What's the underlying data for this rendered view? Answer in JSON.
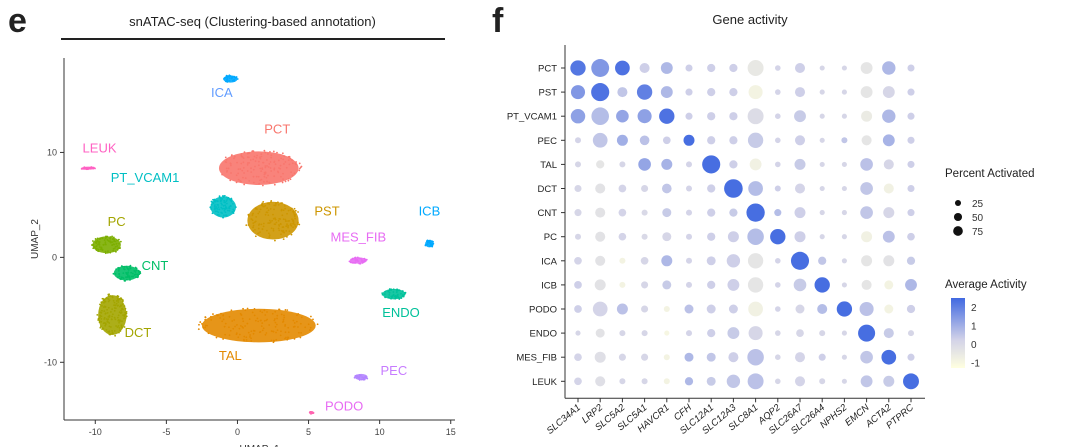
{
  "panels": {
    "e": {
      "letter": "e",
      "title": "snATAC-seq (Clustering-based annotation)"
    },
    "f": {
      "letter": "f",
      "title": "Gene activity"
    }
  },
  "chart_data": [
    {
      "type": "scatter",
      "title": "snATAC-seq (Clustering-based annotation)",
      "xlabel": "UMAP_1",
      "ylabel": "UMAP_2",
      "xlim": [
        -12.2,
        15.3
      ],
      "ylim": [
        -15.5,
        19
      ],
      "xticks": [
        -10,
        -5,
        0,
        5,
        10,
        15
      ],
      "yticks": [
        -10,
        0,
        10
      ],
      "grid": false,
      "clusters": [
        {
          "name": "ICA",
          "color": "#00a9ff",
          "label_color": "#619cff",
          "center": [
            -0.5,
            17
          ],
          "spread": [
            0.5,
            0.35
          ],
          "label_at": [
            -1.1,
            15.3
          ]
        },
        {
          "name": "PCT",
          "color": "#f8766d",
          "label_color": "#f8766d",
          "center": [
            1.5,
            8.5
          ],
          "spread": [
            2.8,
            1.6
          ],
          "label_at": [
            2.8,
            11.8
          ]
        },
        {
          "name": "PT_VCAM1",
          "color": "#00bfc4",
          "label_color": "#00bfc4",
          "center": [
            -1.0,
            4.8
          ],
          "spread": [
            0.9,
            1.0
          ],
          "label_at": [
            -6.5,
            7.2
          ]
        },
        {
          "name": "PST",
          "color": "#cd9600",
          "label_color": "#cd9600",
          "center": [
            2.5,
            3.5
          ],
          "spread": [
            1.8,
            1.8
          ],
          "label_at": [
            6.3,
            4.0
          ]
        },
        {
          "name": "LEUK",
          "color": "#ff61c3",
          "label_color": "#ff61c3",
          "center": [
            -10.5,
            8.5
          ],
          "spread": [
            0.5,
            0.12
          ],
          "label_at": [
            -9.7,
            10.0
          ]
        },
        {
          "name": "ICB",
          "color": "#00a9ff",
          "label_color": "#00a9ff",
          "center": [
            13.5,
            1.3
          ],
          "spread": [
            0.3,
            0.35
          ],
          "label_at": [
            13.5,
            4.0
          ]
        },
        {
          "name": "MES_FIB",
          "color": "#e76bf3",
          "label_color": "#e76bf3",
          "center": [
            8.5,
            -0.3
          ],
          "spread": [
            0.6,
            0.3
          ],
          "label_at": [
            8.5,
            1.5
          ]
        },
        {
          "name": "PC",
          "color": "#7cae00",
          "label_color": "#a3a500",
          "center": [
            -9.2,
            1.2
          ],
          "spread": [
            1.0,
            0.8
          ],
          "label_at": [
            -8.5,
            3.0
          ]
        },
        {
          "name": "CNT",
          "color": "#00be67",
          "label_color": "#00be67",
          "center": [
            -7.8,
            -1.5
          ],
          "spread": [
            0.9,
            0.7
          ],
          "label_at": [
            -5.8,
            -1.2
          ]
        },
        {
          "name": "ENDO",
          "color": "#00c19a",
          "label_color": "#00c19a",
          "center": [
            11.0,
            -3.5
          ],
          "spread": [
            0.8,
            0.5
          ],
          "label_at": [
            11.5,
            -5.7
          ]
        },
        {
          "name": "DCT",
          "color": "#a3a500",
          "label_color": "#a3a500",
          "center": [
            -8.8,
            -5.5
          ],
          "spread": [
            1.0,
            1.9
          ],
          "label_at": [
            -7.0,
            -7.6
          ]
        },
        {
          "name": "TAL",
          "color": "#e38900",
          "label_color": "#e38900",
          "center": [
            1.5,
            -6.5
          ],
          "spread": [
            4.0,
            1.6
          ],
          "label_at": [
            -0.5,
            -9.8
          ]
        },
        {
          "name": "PEC",
          "color": "#b385ff",
          "label_color": "#c77cff",
          "center": [
            8.7,
            -11.4
          ],
          "spread": [
            0.45,
            0.3
          ],
          "label_at": [
            11.0,
            -11.2
          ]
        },
        {
          "name": "PODO",
          "color": "#ff64b0",
          "label_color": "#e76bf3",
          "center": [
            5.2,
            -14.8
          ],
          "spread": [
            0.15,
            0.1
          ],
          "label_at": [
            7.5,
            -14.6
          ]
        }
      ]
    },
    {
      "type": "scatter",
      "subtype": "dotplot",
      "title": "Gene activity",
      "xlabel": "",
      "ylabel": "",
      "genes": [
        "SLC34A1",
        "LRP2",
        "SLC5A2",
        "SLC5A1",
        "HAVCR1",
        "CFH",
        "SLC12A1",
        "SLC12A3",
        "SLC8A1",
        "AQP2",
        "SLC26A7",
        "SLC26A4",
        "NPHS2",
        "EMCN",
        "ACTA2",
        "PTPRC"
      ],
      "cell_types": [
        "PCT",
        "PST",
        "PT_VCAM1",
        "PEC",
        "TAL",
        "DCT",
        "CNT",
        "PC",
        "ICA",
        "ICB",
        "PODO",
        "ENDO",
        "MES_FIB",
        "LEUK"
      ],
      "percent_activated": [
        [
          55,
          78,
          50,
          20,
          30,
          8,
          12,
          12,
          60,
          4,
          20,
          3,
          3,
          30,
          40,
          8
        ],
        [
          45,
          80,
          20,
          55,
          30,
          8,
          12,
          12,
          45,
          4,
          20,
          3,
          3,
          30,
          30,
          8
        ],
        [
          48,
          75,
          35,
          45,
          55,
          8,
          12,
          12,
          60,
          4,
          30,
          3,
          3,
          25,
          40,
          8
        ],
        [
          5,
          50,
          25,
          18,
          10,
          25,
          12,
          12,
          55,
          4,
          20,
          3,
          5,
          20,
          30,
          8
        ],
        [
          5,
          12,
          5,
          35,
          25,
          5,
          80,
          12,
          30,
          4,
          25,
          3,
          3,
          35,
          20,
          8
        ],
        [
          8,
          20,
          10,
          8,
          18,
          5,
          12,
          85,
          50,
          5,
          20,
          3,
          3,
          35,
          20,
          8
        ],
        [
          8,
          20,
          10,
          5,
          15,
          5,
          12,
          12,
          82,
          8,
          25,
          3,
          3,
          35,
          25,
          8
        ],
        [
          5,
          20,
          10,
          5,
          15,
          5,
          12,
          25,
          65,
          55,
          25,
          3,
          3,
          25,
          30,
          10
        ],
        [
          10,
          20,
          5,
          10,
          25,
          5,
          15,
          40,
          55,
          4,
          80,
          12,
          3,
          25,
          25,
          12
        ],
        [
          10,
          25,
          5,
          8,
          15,
          5,
          12,
          30,
          55,
          4,
          35,
          55,
          3,
          20,
          15,
          30
        ],
        [
          10,
          50,
          25,
          8,
          5,
          15,
          15,
          15,
          50,
          4,
          15,
          20,
          55,
          45,
          15,
          12
        ],
        [
          3,
          15,
          5,
          5,
          3,
          5,
          12,
          30,
          45,
          4,
          10,
          5,
          3,
          70,
          20,
          5
        ],
        [
          10,
          25,
          8,
          8,
          5,
          15,
          15,
          20,
          65,
          4,
          20,
          8,
          3,
          35,
          50,
          8
        ],
        [
          10,
          20,
          5,
          5,
          5,
          12,
          15,
          40,
          60,
          4,
          20,
          5,
          3,
          30,
          25,
          60
        ]
      ],
      "average_activity": [
        [
          2.2,
          1.5,
          2.3,
          0.3,
          0.8,
          0.3,
          0.3,
          0.3,
          -0.5,
          0.2,
          0.3,
          0.1,
          0.1,
          -0.4,
          0.8,
          0.3
        ],
        [
          1.5,
          2.3,
          0.5,
          2.0,
          0.8,
          0.3,
          0.3,
          0.3,
          -0.9,
          0.2,
          0.3,
          0.1,
          0.1,
          -0.4,
          0.1,
          0.3
        ],
        [
          1.3,
          0.7,
          1.2,
          1.3,
          2.3,
          0.3,
          0.3,
          0.3,
          -0.1,
          0.2,
          0.4,
          0.1,
          0.1,
          -0.6,
          0.8,
          0.3
        ],
        [
          0.2,
          0.5,
          1.0,
          0.6,
          0.3,
          2.4,
          0.3,
          0.3,
          0.4,
          0.2,
          0.3,
          0.1,
          0.5,
          -0.4,
          0.9,
          0.3
        ],
        [
          0.1,
          -0.4,
          0.1,
          1.2,
          0.9,
          0.2,
          2.4,
          0.3,
          -0.8,
          0.2,
          0.4,
          0.1,
          0.1,
          0.6,
          0.1,
          0.3
        ],
        [
          0.1,
          -0.3,
          0.2,
          0.1,
          0.5,
          0.2,
          0.3,
          2.4,
          0.7,
          0.3,
          0.2,
          0.1,
          0.1,
          0.5,
          -0.8,
          0.3
        ],
        [
          0.1,
          -0.3,
          0.2,
          0.0,
          0.4,
          0.2,
          0.3,
          0.4,
          2.4,
          0.7,
          0.3,
          0.1,
          0.1,
          0.5,
          0.1,
          0.3
        ],
        [
          0.1,
          -0.3,
          0.2,
          0.0,
          0.1,
          0.2,
          0.3,
          0.3,
          0.7,
          2.4,
          0.3,
          0.1,
          0.1,
          -0.8,
          0.6,
          0.3
        ],
        [
          0.2,
          -0.3,
          -0.9,
          0.1,
          0.8,
          0.2,
          0.3,
          0.3,
          -0.4,
          0.2,
          2.4,
          0.5,
          0.1,
          -0.4,
          -0.3,
          0.4
        ],
        [
          0.3,
          -0.3,
          -0.9,
          0.1,
          0.4,
          0.2,
          0.3,
          0.3,
          -0.4,
          0.2,
          0.4,
          2.4,
          0.1,
          -0.4,
          -0.9,
          0.8
        ],
        [
          0.3,
          0.2,
          0.6,
          0.1,
          -0.9,
          0.6,
          0.3,
          0.3,
          -0.8,
          0.2,
          0.1,
          0.7,
          2.4,
          0.6,
          -0.9,
          0.3
        ],
        [
          0.1,
          -0.3,
          0.1,
          0.1,
          -1.0,
          0.2,
          0.3,
          0.4,
          0.1,
          0.1,
          0.1,
          0.1,
          0.1,
          2.4,
          0.4,
          0.1
        ],
        [
          0.2,
          -0.2,
          0.1,
          0.1,
          -0.9,
          0.8,
          0.5,
          0.3,
          0.6,
          0.1,
          0.2,
          0.3,
          0.1,
          0.5,
          2.4,
          0.3
        ],
        [
          0.2,
          -0.2,
          0.1,
          0.1,
          -0.9,
          0.8,
          0.4,
          0.5,
          0.6,
          0.1,
          0.2,
          0.1,
          0.1,
          0.5,
          0.4,
          2.4
        ]
      ],
      "legend_size": {
        "title": "Percent Activated",
        "values": [
          25,
          50,
          75
        ],
        "placement": "right"
      },
      "legend_color": {
        "title": "Average Activity",
        "ticks": [
          2,
          1,
          0,
          -1
        ],
        "range": [
          -1.3,
          2.5
        ],
        "low_color": "#ffffe0",
        "mid_color": "#d3d3e8",
        "high_color": "#4169e1",
        "placement": "right"
      }
    }
  ]
}
